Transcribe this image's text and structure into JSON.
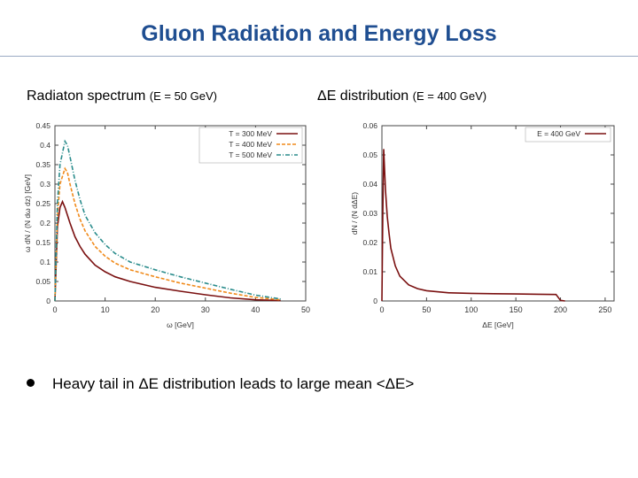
{
  "slide": {
    "title": "Gluon Radiation and Energy Loss",
    "subtitle_left_main": "Radiaton spectrum",
    "subtitle_left_small": "(E = 50 GeV)",
    "subtitle_right_main": "ΔE distribution",
    "subtitle_right_small": "(E = 400 GeV)",
    "bullet_text": "Heavy tail in ΔE distribution leads to large mean <ΔE>"
  },
  "colors": {
    "title": "#1f4e91",
    "series_300": "#7a1010",
    "series_400": "#f08a1a",
    "series_500": "#2a8c8c",
    "series_E400": "#7a1010"
  },
  "chart_data": [
    {
      "type": "line",
      "title": "",
      "xlabel": "ω [GeV]",
      "ylabel": "ω dN / (N dω dz) [GeV]",
      "xlim": [
        0,
        50
      ],
      "ylim": [
        0,
        0.45
      ],
      "xticks": [
        "0",
        "10",
        "20",
        "30",
        "40",
        "50"
      ],
      "yticks": [
        "0",
        "0.05",
        "0.1",
        "0.15",
        "0.2",
        "0.25",
        "0.3",
        "0.35",
        "0.4",
        "0.45"
      ],
      "legend_position": "top-right",
      "series": [
        {
          "name": "T = 300 MeV",
          "x": [
            0,
            0.5,
            1,
            1.5,
            2,
            3,
            4,
            5,
            6,
            8,
            10,
            12,
            15,
            20,
            25,
            30,
            35,
            40,
            45
          ],
          "y": [
            0,
            0.19,
            0.24,
            0.255,
            0.24,
            0.2,
            0.165,
            0.14,
            0.12,
            0.092,
            0.075,
            0.062,
            0.05,
            0.035,
            0.025,
            0.016,
            0.008,
            0.003,
            0.001
          ]
        },
        {
          "name": "T = 400 MeV",
          "x": [
            0,
            0.5,
            1,
            2,
            2.5,
            3,
            4,
            5,
            6,
            8,
            10,
            12,
            15,
            20,
            25,
            30,
            35,
            40,
            45
          ],
          "y": [
            0,
            0.22,
            0.3,
            0.34,
            0.33,
            0.3,
            0.25,
            0.21,
            0.18,
            0.14,
            0.115,
            0.097,
            0.08,
            0.062,
            0.046,
            0.033,
            0.02,
            0.009,
            0.003
          ]
        },
        {
          "name": "T = 500 MeV",
          "x": [
            0,
            0.5,
            1,
            2,
            2.5,
            3,
            4,
            5,
            6,
            8,
            10,
            12,
            15,
            20,
            25,
            30,
            35,
            40,
            45
          ],
          "y": [
            0,
            0.25,
            0.35,
            0.41,
            0.4,
            0.37,
            0.31,
            0.26,
            0.22,
            0.175,
            0.145,
            0.122,
            0.1,
            0.08,
            0.062,
            0.046,
            0.03,
            0.015,
            0.005
          ]
        }
      ]
    },
    {
      "type": "line",
      "title": "",
      "xlabel": "ΔE [GeV]",
      "ylabel": "dN / (N dΔE)",
      "xlim": [
        0,
        260
      ],
      "ylim": [
        0,
        0.06
      ],
      "xticks": [
        "0",
        "50",
        "100",
        "150",
        "200",
        "250"
      ],
      "yticks": [
        "0",
        "0.01",
        "0.02",
        "0.03",
        "0.04",
        "0.05",
        "0.06"
      ],
      "legend_position": "top-right",
      "series": [
        {
          "name": "E = 400 GeV",
          "x": [
            0,
            1,
            2,
            3,
            4,
            6,
            8,
            10,
            15,
            20,
            30,
            40,
            50,
            75,
            100,
            125,
            150,
            175,
            195,
            198,
            200,
            205
          ],
          "y": [
            0,
            0.03,
            0.052,
            0.045,
            0.038,
            0.029,
            0.023,
            0.018,
            0.012,
            0.0085,
            0.0055,
            0.0042,
            0.0035,
            0.0028,
            0.0026,
            0.0025,
            0.0024,
            0.0023,
            0.0022,
            0.001,
            0.0002,
            0
          ]
        }
      ]
    }
  ]
}
